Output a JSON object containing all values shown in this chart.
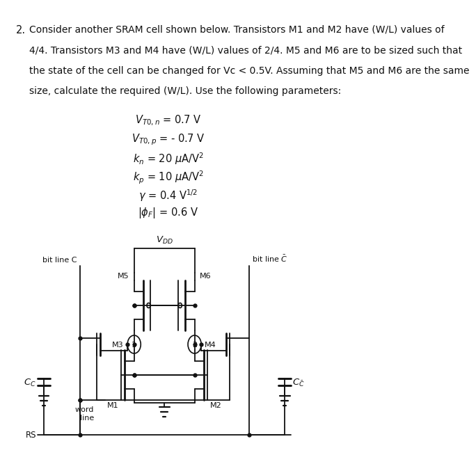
{
  "problem_number": "2.",
  "text_lines": [
    "Consider another SRAM cell shown below. Transistors M1 and M2 have (W/L) values of",
    "4/4. Transistors M3 and M4 have (W/L) values of 2/4. M5 and M6 are to be sized such that",
    "the state of the cell can be changed for Vc < 0.5V. Assuming that M5 and M6 are the same",
    "size, calculate the required (W/L). Use the following parameters:"
  ],
  "params": [
    [
      "$V_{T0,n}$",
      " = 0.7 V"
    ],
    [
      "$V_{T0,p}$",
      " = - 0.7 V"
    ],
    [
      "$k_n$",
      " = 20 $\\mu$A/V$^2$"
    ],
    [
      "$k_p$",
      " = 10 $\\mu$A/V$^2$"
    ],
    [
      "$\\gamma$",
      " = 0.4 V$^{1/2}$"
    ],
    [
      "$|\\phi_F|$",
      " = 0.6 V"
    ]
  ],
  "bg": "#ffffff",
  "fg": "#111111"
}
